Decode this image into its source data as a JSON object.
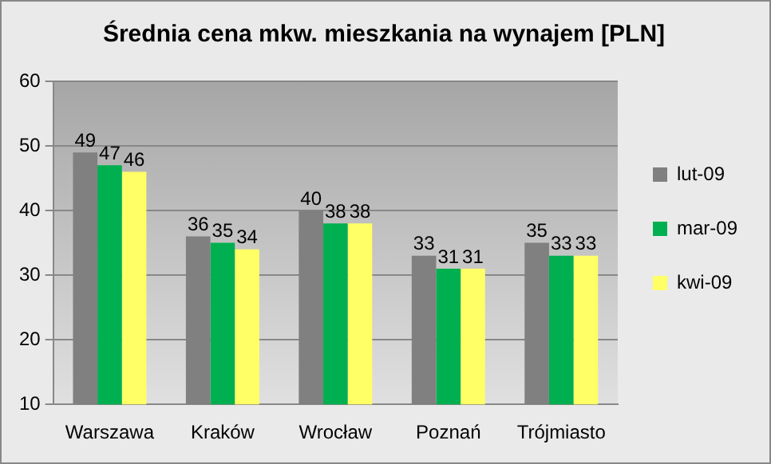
{
  "chart_data": {
    "type": "bar",
    "title": "Średnia cena mkw. mieszkania na wynajem [PLN]",
    "categories": [
      "Warszawa",
      "Kraków",
      "Wrocław",
      "Poznań",
      "Trójmiasto"
    ],
    "series": [
      {
        "name": "lut-09",
        "color": "#808080",
        "values": [
          49,
          36,
          40,
          33,
          35
        ]
      },
      {
        "name": "mar-09",
        "color": "#00b050",
        "values": [
          47,
          35,
          38,
          31,
          33
        ]
      },
      {
        "name": "kwi-09",
        "color": "#ffff66",
        "values": [
          46,
          34,
          38,
          31,
          33
        ]
      }
    ],
    "ylim": [
      10,
      60
    ],
    "yticks": [
      10,
      20,
      30,
      40,
      50,
      60
    ],
    "grid": "y",
    "legend": "right",
    "data_labels": true
  }
}
